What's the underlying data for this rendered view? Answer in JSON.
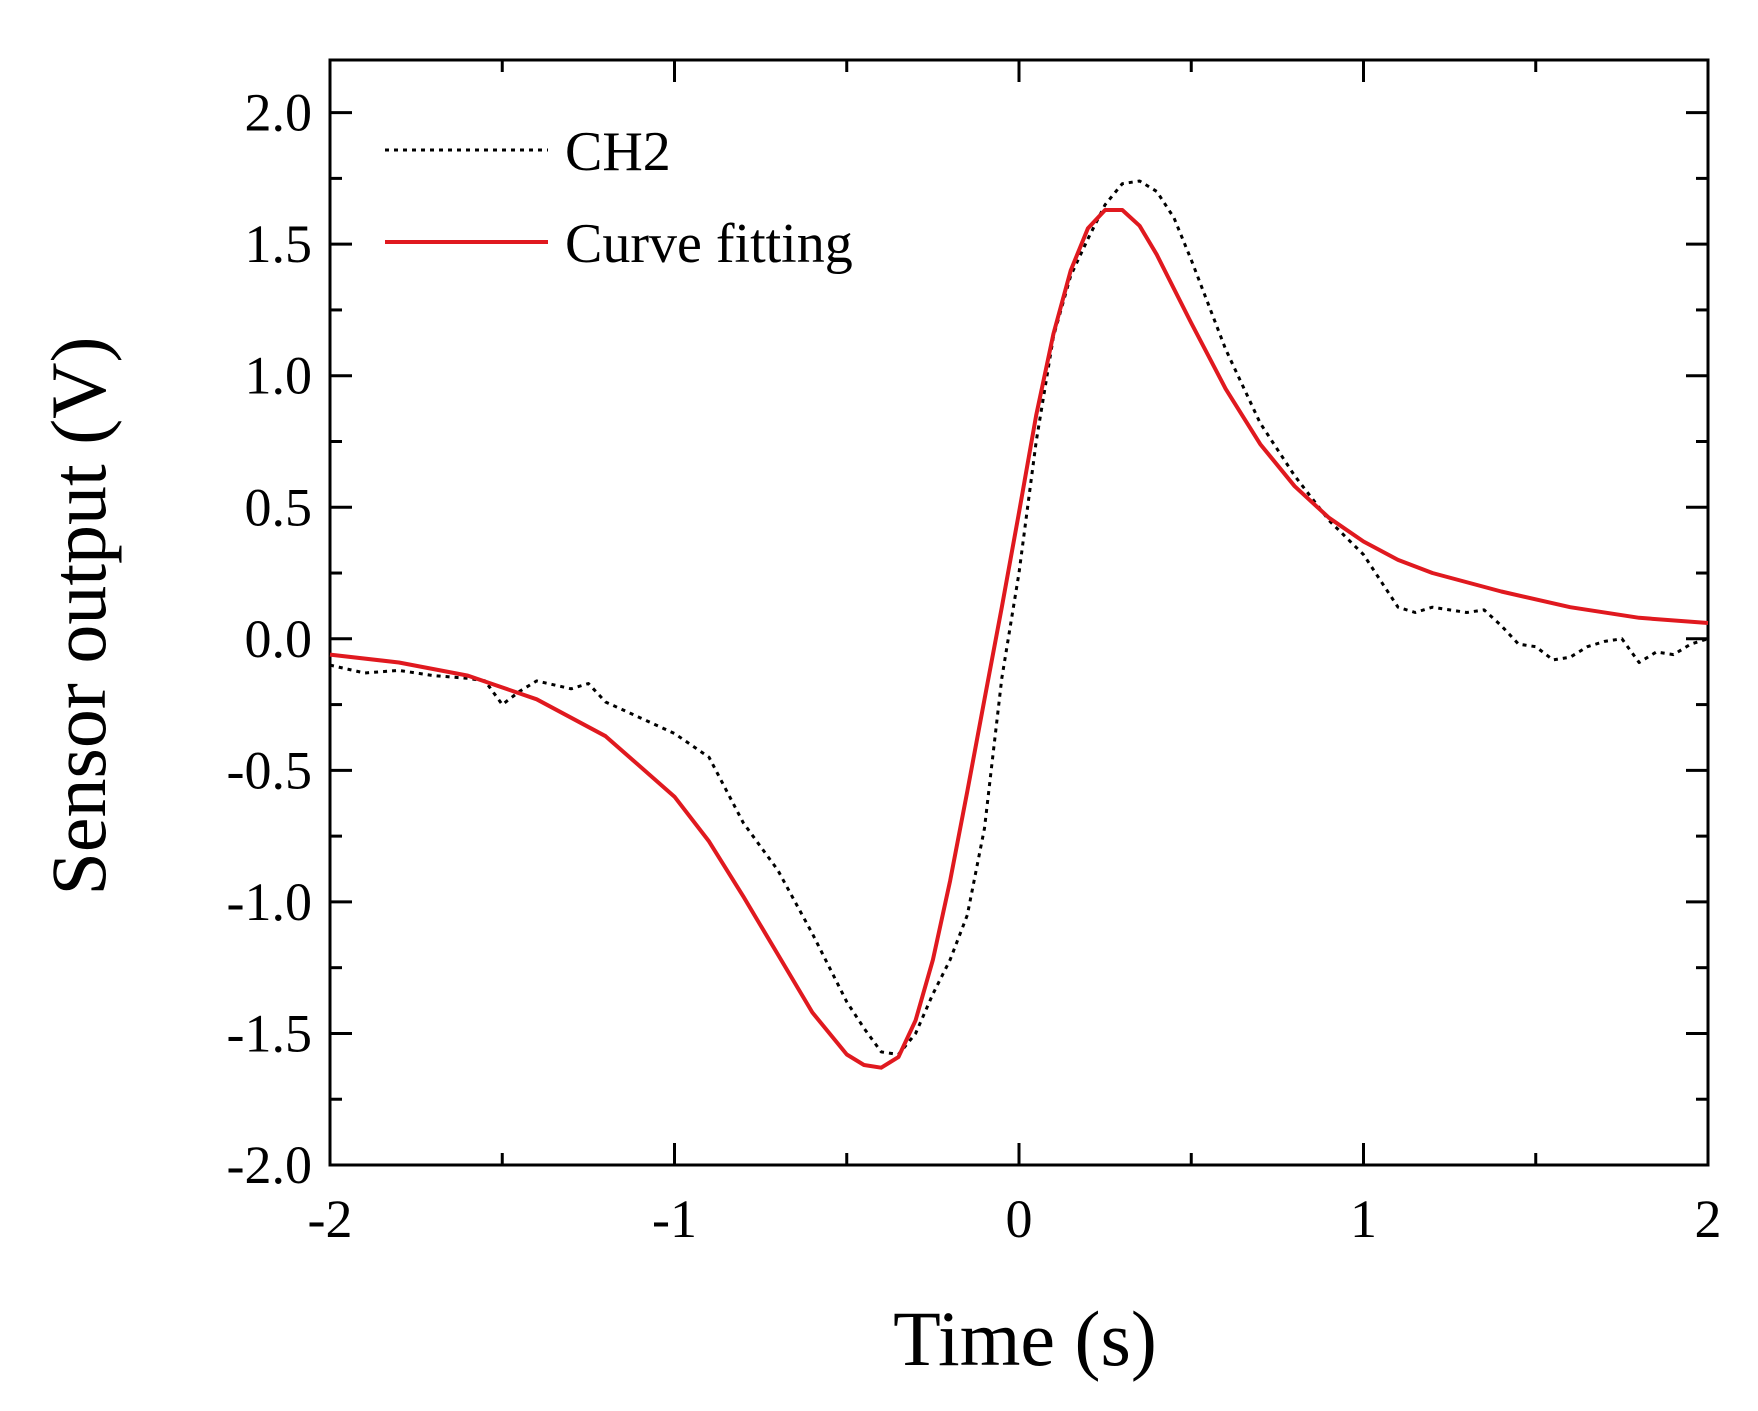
{
  "chart_data": {
    "type": "line",
    "title": "",
    "xlabel": "Time (s)",
    "ylabel": "Sensor output (V)",
    "xlim": [
      -2,
      2
    ],
    "ylim": [
      -2.0,
      2.2
    ],
    "xticks": [
      -2,
      -1,
      0,
      1,
      2
    ],
    "xtick_labels": [
      "-2",
      "-1",
      "0",
      "1",
      "2"
    ],
    "yticks": [
      -2.0,
      -1.5,
      -1.0,
      -0.5,
      0.0,
      0.5,
      1.0,
      1.5,
      2.0
    ],
    "ytick_labels": [
      "-2.0",
      "-1.5",
      "-1.0",
      "-0.5",
      "0.0",
      "0.5",
      "1.0",
      "1.5",
      "2.0"
    ],
    "grid": false,
    "legend_position": "top-left",
    "series": [
      {
        "name": "CH2",
        "style": "dotted",
        "color": "#000000",
        "x": [
          -2.0,
          -1.9,
          -1.8,
          -1.7,
          -1.6,
          -1.55,
          -1.5,
          -1.45,
          -1.4,
          -1.3,
          -1.25,
          -1.2,
          -1.1,
          -1.0,
          -0.9,
          -0.8,
          -0.7,
          -0.6,
          -0.5,
          -0.45,
          -0.4,
          -0.35,
          -0.3,
          -0.25,
          -0.2,
          -0.15,
          -0.1,
          -0.05,
          0.0,
          0.05,
          0.1,
          0.15,
          0.2,
          0.25,
          0.3,
          0.35,
          0.4,
          0.45,
          0.5,
          0.6,
          0.7,
          0.8,
          0.9,
          1.0,
          1.1,
          1.15,
          1.2,
          1.3,
          1.35,
          1.4,
          1.45,
          1.5,
          1.55,
          1.6,
          1.65,
          1.7,
          1.75,
          1.8,
          1.85,
          1.9,
          1.95,
          2.0
        ],
        "y": [
          -0.1,
          -0.13,
          -0.12,
          -0.14,
          -0.15,
          -0.16,
          -0.25,
          -0.2,
          -0.16,
          -0.19,
          -0.17,
          -0.24,
          -0.3,
          -0.36,
          -0.45,
          -0.7,
          -0.88,
          -1.12,
          -1.38,
          -1.48,
          -1.57,
          -1.58,
          -1.5,
          -1.35,
          -1.22,
          -1.05,
          -0.72,
          -0.15,
          0.25,
          0.75,
          1.15,
          1.38,
          1.52,
          1.65,
          1.73,
          1.74,
          1.7,
          1.6,
          1.44,
          1.1,
          0.82,
          0.62,
          0.45,
          0.32,
          0.12,
          0.1,
          0.12,
          0.1,
          0.11,
          0.05,
          -0.02,
          -0.03,
          -0.08,
          -0.07,
          -0.03,
          -0.01,
          0.0,
          -0.09,
          -0.05,
          -0.06,
          -0.02,
          0.0
        ]
      },
      {
        "name": "Curve fitting",
        "style": "solid",
        "color": "#e0191f",
        "x": [
          -2.0,
          -1.8,
          -1.6,
          -1.4,
          -1.2,
          -1.0,
          -0.9,
          -0.8,
          -0.7,
          -0.6,
          -0.5,
          -0.45,
          -0.4,
          -0.35,
          -0.3,
          -0.25,
          -0.2,
          -0.15,
          -0.1,
          -0.05,
          0.0,
          0.05,
          0.1,
          0.15,
          0.2,
          0.25,
          0.3,
          0.35,
          0.4,
          0.45,
          0.5,
          0.6,
          0.7,
          0.8,
          0.9,
          1.0,
          1.1,
          1.2,
          1.4,
          1.6,
          1.8,
          2.0
        ],
        "y": [
          -0.06,
          -0.09,
          -0.14,
          -0.23,
          -0.37,
          -0.6,
          -0.77,
          -0.98,
          -1.2,
          -1.42,
          -1.58,
          -1.62,
          -1.63,
          -1.59,
          -1.45,
          -1.22,
          -0.92,
          -0.58,
          -0.23,
          0.12,
          0.48,
          0.85,
          1.16,
          1.4,
          1.56,
          1.63,
          1.63,
          1.57,
          1.46,
          1.33,
          1.2,
          0.95,
          0.74,
          0.58,
          0.46,
          0.37,
          0.3,
          0.25,
          0.18,
          0.12,
          0.08,
          0.06
        ]
      }
    ]
  }
}
